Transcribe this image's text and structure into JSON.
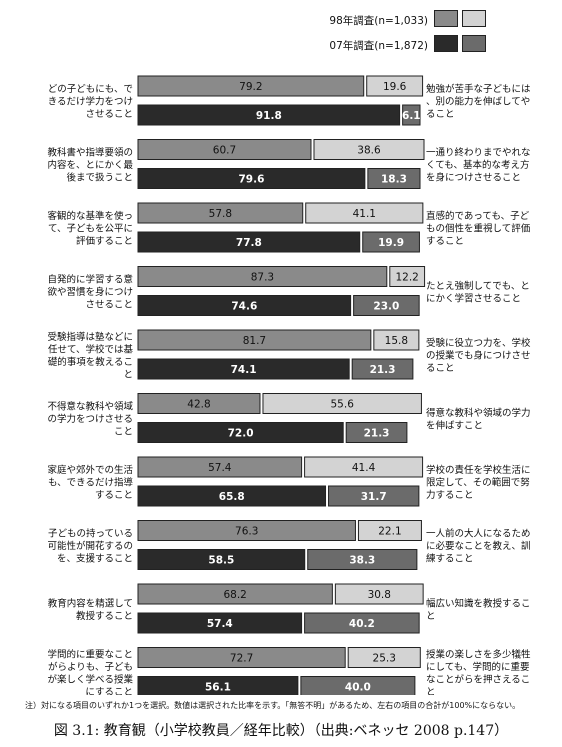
{
  "legend": {
    "survey98": "98年調査(n=1,033)",
    "survey07": "07年調査(n=1,872)"
  },
  "colors": {
    "y98_left": "#8a8a8a",
    "y98_right": "#d3d3d3",
    "y07_left": "#2a2a2a",
    "y07_right": "#6b6b6b"
  },
  "chart_data": {
    "type": "bar",
    "orientation": "horizontal-stacked",
    "xlim": [
      0,
      100
    ],
    "series": [
      {
        "name": "98年調査(n=1,033)"
      },
      {
        "name": "07年調査(n=1,872)"
      }
    ],
    "items": [
      {
        "left": "どの子どもにも、できるだけ学力をつけさせること",
        "right": "勉強が苦手な子どもには、別の能力を伸ばしてやること",
        "y98": [
          79.2,
          19.6
        ],
        "y07": [
          91.8,
          6.1
        ]
      },
      {
        "left": "教科書や指導要領の内容を、とにかく最後まで扱うこと",
        "right": "一通り終わりまでやれなくても、基本的な考え方を身につけさせること",
        "y98": [
          60.7,
          38.6
        ],
        "y07": [
          79.6,
          18.3
        ]
      },
      {
        "left": "客観的な基準を使って、子どもを公平に評価すること",
        "right": "直感的であっても、子どもの個性を重視して評価すること",
        "y98": [
          57.8,
          41.1
        ],
        "y07": [
          77.8,
          19.9
        ]
      },
      {
        "left": "自発的に学習する意欲や習慣を身につけさせること",
        "right": "たとえ強制してでも、とにかく学習させること",
        "y98": [
          87.3,
          12.2
        ],
        "y07": [
          74.6,
          23.0
        ]
      },
      {
        "left": "受験指導は塾などに任せて、学校では基礎的事項を教えること",
        "right": "受験に役立つ力を、学校の授業でも身につけさせること",
        "y98": [
          81.7,
          15.8
        ],
        "y07": [
          74.1,
          21.3
        ]
      },
      {
        "left": "不得意な教科や領域の学力をつけさせること",
        "right": "得意な教科や領域の学力を伸ばすこと",
        "y98": [
          42.8,
          55.6
        ],
        "y07": [
          72.0,
          21.3
        ]
      },
      {
        "left": "家庭や郊外での生活も、できるだけ指導すること",
        "right": "学校の責任を学校生活に限定して、その範囲で努力すること",
        "y98": [
          57.4,
          41.4
        ],
        "y07": [
          65.8,
          31.7
        ]
      },
      {
        "left": "子どもの持っている可能性が開花するのを、支援すること",
        "right": "一人前の大人になるために必要なことを教え、訓練すること",
        "y98": [
          76.3,
          22.1
        ],
        "y07": [
          58.5,
          38.3
        ]
      },
      {
        "left": "教育内容を精選して教授すること",
        "right": "幅広い知識を教授すること",
        "y98": [
          68.2,
          30.8
        ],
        "y07": [
          57.4,
          40.2
        ]
      },
      {
        "left": "学問的に重要なことがらよりも、子どもが楽しく学べる授業にすること",
        "right": "授業の楽しさを多少犠牲にしても、学問的に重要なことがらを押さえること",
        "y98": [
          72.7,
          25.3
        ],
        "y07": [
          56.1,
          40.0
        ]
      }
    ]
  },
  "note": "注）対になる項目のいずれか1つを選択。数値は選択された比率を示す。「無答不明」があるため、左右の項目の合計が100%にならない。",
  "caption": "図 3.1: 教育観（小学校教員／経年比較）（出典:ベネッセ 2008 p.147）"
}
